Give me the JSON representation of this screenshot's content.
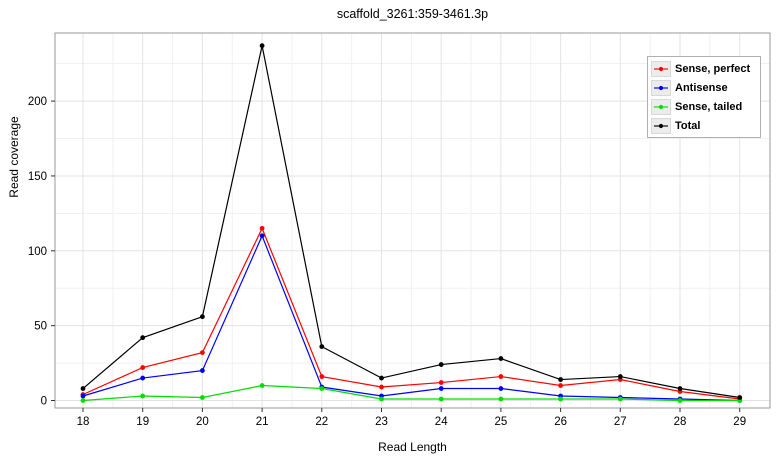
{
  "title": "scaffold_3261:359-3461.3p",
  "axes": {
    "xlabel": "Read Length",
    "ylabel": "Read coverage"
  },
  "chart_data": {
    "type": "line",
    "title": "scaffold_3261:359-3461.3p",
    "xlabel": "Read Length",
    "ylabel": "Read coverage",
    "x": [
      18,
      19,
      20,
      21,
      22,
      23,
      24,
      25,
      26,
      27,
      28,
      29
    ],
    "yticks": [
      0,
      50,
      100,
      150,
      200
    ],
    "ylim": [
      -5,
      245
    ],
    "xlim": [
      17.5,
      29.5
    ],
    "grid": "major and minor gridlines, light gray on white panel",
    "legend_position": "top-right inside panel",
    "marker": "filled circle",
    "series": [
      {
        "name": "Sense, perfect",
        "color": "#ff0000",
        "values": [
          4,
          22,
          32,
          115,
          16,
          9,
          12,
          16,
          10,
          14,
          6,
          1
        ]
      },
      {
        "name": "Antisense",
        "color": "#0000ff",
        "values": [
          3,
          15,
          20,
          110,
          9,
          3,
          8,
          8,
          3,
          2,
          1,
          0
        ]
      },
      {
        "name": "Sense, tailed",
        "color": "#00dd00",
        "values": [
          0,
          3,
          2,
          10,
          8,
          1,
          1,
          1,
          1,
          1,
          0,
          0
        ]
      },
      {
        "name": "Total",
        "color": "#000000",
        "values": [
          8,
          42,
          56,
          237,
          36,
          15,
          24,
          28,
          14,
          16,
          8,
          2
        ]
      }
    ]
  }
}
